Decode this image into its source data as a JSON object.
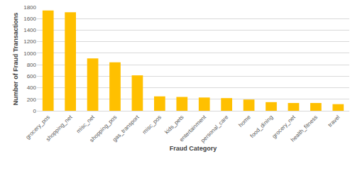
{
  "chart_data": {
    "type": "bar",
    "x_label": "Fraud Category",
    "y_label": "Number of Fraud Transactions",
    "categories": [
      "grocery_pos",
      "shopping_net",
      "misc_net",
      "shopping_pos",
      "gas_transport",
      "misc_pos",
      "kids_pets",
      "entertainment",
      "personal_care",
      "home",
      "food_dining",
      "grocery_net",
      "health_fitness",
      "travel"
    ],
    "values": [
      1740,
      1710,
      910,
      840,
      615,
      250,
      240,
      230,
      220,
      195,
      150,
      135,
      135,
      115
    ],
    "color": "#ffc000",
    "ylim": [
      0,
      1800
    ],
    "yticks": [
      0,
      200,
      400,
      600,
      800,
      1000,
      1200,
      1400,
      1600,
      1800
    ],
    "grid": true
  }
}
